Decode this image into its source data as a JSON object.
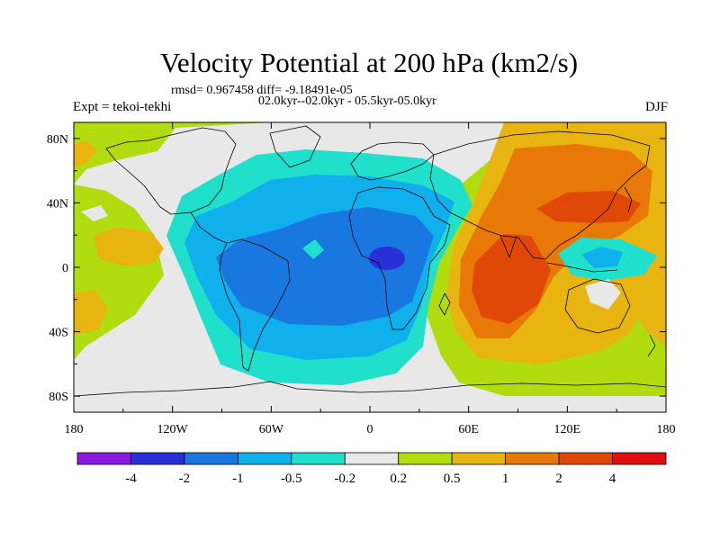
{
  "map": {
    "title": "Velocity Potential at 200 hPa (km2/s)",
    "stats_line": "rmsd= 0.967458 diff= -9.18491e-05",
    "period_line": "02.0kyr--02.0kyr - 05.5kyr-05.0kyr",
    "experiment": "Expt = tekoi-tekhi",
    "season": "DJF",
    "projection": "cylindrical-equidistant",
    "extent": {
      "lon": [
        -180,
        180
      ],
      "lat": [
        -90,
        90
      ]
    },
    "lat_labels": [
      "80N",
      "40N",
      "0",
      "40S",
      "80S"
    ],
    "lon_labels": [
      "180",
      "120W",
      "60W",
      "0",
      "60E",
      "120E",
      "180"
    ]
  },
  "chart_data": {
    "type": "filled-contour-map",
    "variable": "velocity potential anomaly",
    "units": "km2/s",
    "level_hpa": 200,
    "colorbar": {
      "levels": [
        -4,
        -2,
        -1,
        -0.5,
        -0.2,
        0.2,
        0.5,
        1,
        2,
        4
      ],
      "labels": [
        "-4",
        "-2",
        "-1",
        "-0.5",
        "-0.2",
        "0.2",
        "0.5",
        "1",
        "2",
        "4"
      ],
      "colors": [
        "#8a18e0",
        "#2830d8",
        "#1878e0",
        "#10b0ec",
        "#20e0cc",
        "#e8e8e8",
        "#b0dc10",
        "#e8b410",
        "#e87808",
        "#e04808",
        "#e01010"
      ]
    },
    "features": [
      {
        "name": "divergence-center",
        "sign": "negative",
        "approx_lon": 10,
        "approx_lat": 2,
        "peak_class": "-2"
      },
      {
        "name": "convergence-center",
        "sign": "positive",
        "approx_lon": 120,
        "approx_lat": 30,
        "peak_class": "2"
      },
      {
        "name": "convergence-center",
        "sign": "positive",
        "approx_lon": 80,
        "approx_lat": -10,
        "peak_class": "2"
      }
    ]
  }
}
